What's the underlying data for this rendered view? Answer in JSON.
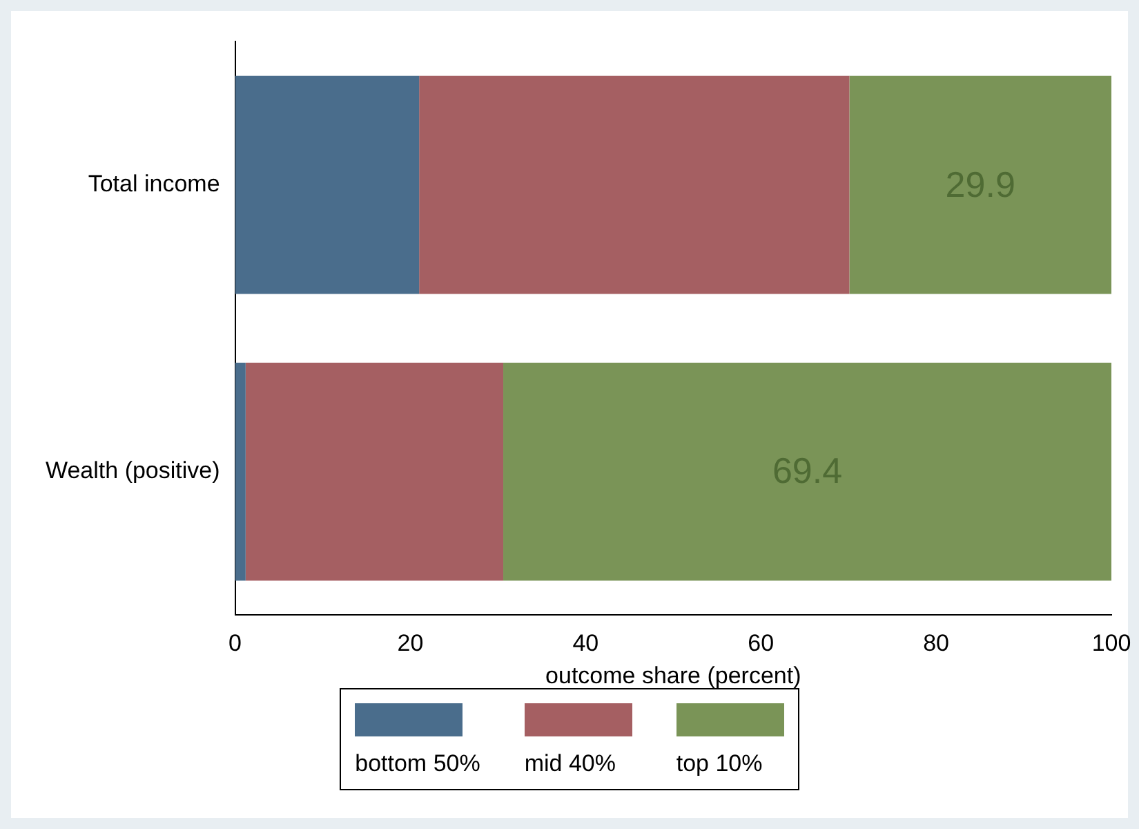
{
  "chart_data": {
    "type": "bar",
    "orientation": "horizontal",
    "stacked": true,
    "xlabel": "outcome share (percent)",
    "categories": [
      "Total income",
      "Wealth (positive)"
    ],
    "series": [
      {
        "name": "bottom 50%",
        "color": "#4a6d8c",
        "values": [
          21.0,
          1.2
        ]
      },
      {
        "name": "mid 40%",
        "color": "#a55f62",
        "values": [
          49.1,
          29.4
        ]
      },
      {
        "name": "top 10%",
        "color": "#7a9457",
        "values": [
          29.9,
          69.4
        ],
        "value_labels": [
          "29.9",
          "69.4"
        ]
      }
    ],
    "xlim": [
      0,
      100
    ],
    "xticks": [
      0,
      20,
      40,
      60,
      80,
      100
    ],
    "grid": false,
    "legend": "bottom"
  }
}
